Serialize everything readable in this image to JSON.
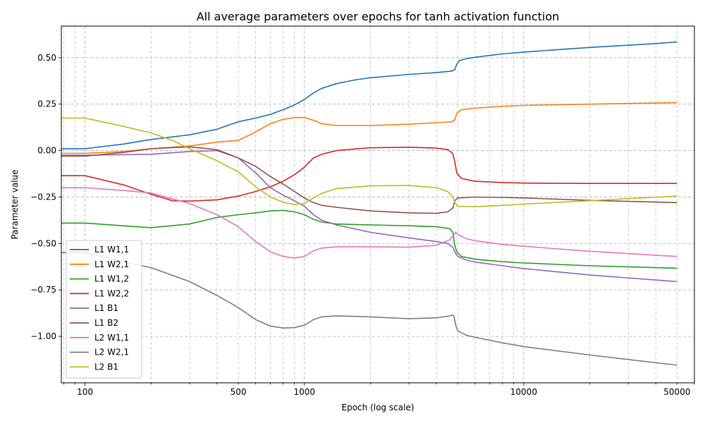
{
  "chart_data": {
    "type": "line",
    "title": "All average parameters over epochs for tanh activation function",
    "xlabel": "Epoch (log scale)",
    "ylabel": "Parameter value",
    "x_scale": "log",
    "xlim": [
      78,
      60000
    ],
    "ylim": [
      -1.25,
      0.67
    ],
    "x_ticks": [
      {
        "value": 100,
        "label": "100"
      },
      {
        "value": 500,
        "label": "500"
      },
      {
        "value": 1000,
        "label": "1000"
      },
      {
        "value": 10000,
        "label": "10000"
      },
      {
        "value": 50000,
        "label": "50000"
      }
    ],
    "y_ticks": [
      {
        "value": 0.5,
        "label": "0.50"
      },
      {
        "value": 0.25,
        "label": "0.25"
      },
      {
        "value": 0.0,
        "label": "0.00"
      },
      {
        "value": -0.25,
        "label": "−0.25"
      },
      {
        "value": -0.5,
        "label": "−0.50"
      },
      {
        "value": -0.75,
        "label": "−0.75"
      },
      {
        "value": -1.0,
        "label": "−1.00"
      }
    ],
    "grid": true,
    "legend_position": "lower-left",
    "series": [
      {
        "name": "L1 W1,1",
        "color": "#1f77b4",
        "points": [
          [
            70,
            0.01
          ],
          [
            100,
            0.01
          ],
          [
            150,
            0.035
          ],
          [
            200,
            0.06
          ],
          [
            300,
            0.085
          ],
          [
            400,
            0.115
          ],
          [
            500,
            0.155
          ],
          [
            600,
            0.175
          ],
          [
            700,
            0.195
          ],
          [
            800,
            0.22
          ],
          [
            900,
            0.245
          ],
          [
            1000,
            0.275
          ],
          [
            1100,
            0.31
          ],
          [
            1200,
            0.335
          ],
          [
            1400,
            0.36
          ],
          [
            1700,
            0.38
          ],
          [
            2000,
            0.392
          ],
          [
            3000,
            0.41
          ],
          [
            4000,
            0.42
          ],
          [
            4700,
            0.428
          ],
          [
            4850,
            0.435
          ],
          [
            4950,
            0.465
          ],
          [
            5100,
            0.485
          ],
          [
            5500,
            0.495
          ],
          [
            6000,
            0.502
          ],
          [
            7000,
            0.512
          ],
          [
            8000,
            0.52
          ],
          [
            10000,
            0.53
          ],
          [
            15000,
            0.545
          ],
          [
            20000,
            0.555
          ],
          [
            30000,
            0.567
          ],
          [
            40000,
            0.576
          ],
          [
            50000,
            0.585
          ]
        ]
      },
      {
        "name": "L1 W2,1",
        "color": "#ff7f0e",
        "points": [
          [
            70,
            -0.015
          ],
          [
            100,
            -0.015
          ],
          [
            150,
            -0.005
          ],
          [
            200,
            0.01
          ],
          [
            300,
            0.025
          ],
          [
            400,
            0.045
          ],
          [
            500,
            0.055
          ],
          [
            600,
            0.1
          ],
          [
            700,
            0.145
          ],
          [
            800,
            0.168
          ],
          [
            900,
            0.178
          ],
          [
            1000,
            0.178
          ],
          [
            1100,
            0.163
          ],
          [
            1200,
            0.145
          ],
          [
            1400,
            0.135
          ],
          [
            2000,
            0.135
          ],
          [
            3000,
            0.142
          ],
          [
            4000,
            0.15
          ],
          [
            4700,
            0.155
          ],
          [
            4850,
            0.165
          ],
          [
            4950,
            0.2
          ],
          [
            5200,
            0.22
          ],
          [
            6000,
            0.228
          ],
          [
            8000,
            0.238
          ],
          [
            10000,
            0.243
          ],
          [
            20000,
            0.25
          ],
          [
            50000,
            0.258
          ]
        ]
      },
      {
        "name": "L1 W1,2",
        "color": "#2ca02c",
        "points": [
          [
            70,
            -0.39
          ],
          [
            100,
            -0.39
          ],
          [
            150,
            -0.405
          ],
          [
            200,
            -0.415
          ],
          [
            300,
            -0.395
          ],
          [
            400,
            -0.36
          ],
          [
            500,
            -0.345
          ],
          [
            600,
            -0.335
          ],
          [
            700,
            -0.325
          ],
          [
            800,
            -0.322
          ],
          [
            900,
            -0.33
          ],
          [
            1000,
            -0.345
          ],
          [
            1100,
            -0.37
          ],
          [
            1200,
            -0.385
          ],
          [
            1400,
            -0.395
          ],
          [
            2000,
            -0.4
          ],
          [
            3000,
            -0.405
          ],
          [
            4000,
            -0.41
          ],
          [
            4600,
            -0.42
          ],
          [
            4750,
            -0.44
          ],
          [
            4850,
            -0.51
          ],
          [
            4950,
            -0.545
          ],
          [
            5200,
            -0.57
          ],
          [
            6000,
            -0.585
          ],
          [
            8000,
            -0.598
          ],
          [
            10000,
            -0.605
          ],
          [
            20000,
            -0.62
          ],
          [
            50000,
            -0.633
          ]
        ]
      },
      {
        "name": "L1 W2,2",
        "color": "#d62728",
        "points": [
          [
            70,
            -0.135
          ],
          [
            100,
            -0.135
          ],
          [
            150,
            -0.185
          ],
          [
            200,
            -0.235
          ],
          [
            250,
            -0.27
          ],
          [
            300,
            -0.272
          ],
          [
            400,
            -0.265
          ],
          [
            500,
            -0.245
          ],
          [
            600,
            -0.22
          ],
          [
            700,
            -0.195
          ],
          [
            800,
            -0.165
          ],
          [
            900,
            -0.13
          ],
          [
            1000,
            -0.09
          ],
          [
            1100,
            -0.04
          ],
          [
            1200,
            -0.02
          ],
          [
            1400,
            0.0
          ],
          [
            2000,
            0.015
          ],
          [
            3000,
            0.018
          ],
          [
            4000,
            0.013
          ],
          [
            4500,
            0.005
          ],
          [
            4750,
            -0.015
          ],
          [
            4850,
            -0.06
          ],
          [
            4950,
            -0.12
          ],
          [
            5200,
            -0.15
          ],
          [
            6000,
            -0.165
          ],
          [
            8000,
            -0.172
          ],
          [
            10000,
            -0.175
          ],
          [
            20000,
            -0.177
          ],
          [
            50000,
            -0.177
          ]
        ]
      },
      {
        "name": "L1 B1",
        "color": "#9467bd",
        "points": [
          [
            70,
            -0.025
          ],
          [
            100,
            -0.025
          ],
          [
            200,
            -0.02
          ],
          [
            300,
            -0.005
          ],
          [
            400,
            0.0
          ],
          [
            500,
            -0.04
          ],
          [
            600,
            -0.12
          ],
          [
            700,
            -0.2
          ],
          [
            800,
            -0.24
          ],
          [
            900,
            -0.27
          ],
          [
            1000,
            -0.3
          ],
          [
            1100,
            -0.345
          ],
          [
            1200,
            -0.375
          ],
          [
            1400,
            -0.4
          ],
          [
            2000,
            -0.44
          ],
          [
            3000,
            -0.47
          ],
          [
            4000,
            -0.49
          ],
          [
            4500,
            -0.5
          ],
          [
            4750,
            -0.52
          ],
          [
            4850,
            -0.545
          ],
          [
            5000,
            -0.57
          ],
          [
            5500,
            -0.59
          ],
          [
            6000,
            -0.6
          ],
          [
            8000,
            -0.62
          ],
          [
            10000,
            -0.635
          ],
          [
            20000,
            -0.67
          ],
          [
            50000,
            -0.705
          ]
        ]
      },
      {
        "name": "L1 B2",
        "color": "#8c564b",
        "points": [
          [
            70,
            -0.03
          ],
          [
            100,
            -0.03
          ],
          [
            150,
            -0.01
          ],
          [
            200,
            0.01
          ],
          [
            300,
            0.02
          ],
          [
            400,
            0.005
          ],
          [
            500,
            -0.04
          ],
          [
            600,
            -0.085
          ],
          [
            700,
            -0.14
          ],
          [
            800,
            -0.18
          ],
          [
            900,
            -0.22
          ],
          [
            1000,
            -0.255
          ],
          [
            1100,
            -0.28
          ],
          [
            1200,
            -0.295
          ],
          [
            1400,
            -0.305
          ],
          [
            2000,
            -0.325
          ],
          [
            3000,
            -0.335
          ],
          [
            4000,
            -0.338
          ],
          [
            4500,
            -0.33
          ],
          [
            4750,
            -0.31
          ],
          [
            4850,
            -0.27
          ],
          [
            5000,
            -0.255
          ],
          [
            6000,
            -0.25
          ],
          [
            8000,
            -0.252
          ],
          [
            10000,
            -0.255
          ],
          [
            20000,
            -0.268
          ],
          [
            50000,
            -0.28
          ]
        ]
      },
      {
        "name": "L2 W1,1",
        "color": "#e377c2",
        "points": [
          [
            70,
            -0.2
          ],
          [
            100,
            -0.2
          ],
          [
            150,
            -0.215
          ],
          [
            200,
            -0.228
          ],
          [
            300,
            -0.285
          ],
          [
            400,
            -0.345
          ],
          [
            500,
            -0.41
          ],
          [
            600,
            -0.49
          ],
          [
            700,
            -0.545
          ],
          [
            800,
            -0.57
          ],
          [
            900,
            -0.578
          ],
          [
            1000,
            -0.57
          ],
          [
            1100,
            -0.54
          ],
          [
            1200,
            -0.525
          ],
          [
            1400,
            -0.518
          ],
          [
            2000,
            -0.518
          ],
          [
            3000,
            -0.52
          ],
          [
            4000,
            -0.51
          ],
          [
            4600,
            -0.48
          ],
          [
            4750,
            -0.46
          ],
          [
            4900,
            -0.44
          ],
          [
            5050,
            -0.455
          ],
          [
            5500,
            -0.475
          ],
          [
            6000,
            -0.485
          ],
          [
            8000,
            -0.505
          ],
          [
            10000,
            -0.515
          ],
          [
            20000,
            -0.542
          ],
          [
            50000,
            -0.57
          ]
        ]
      },
      {
        "name": "L2 W2,1",
        "color": "#7f7f7f",
        "points": [
          [
            70,
            -0.548
          ],
          [
            100,
            -0.55
          ],
          [
            150,
            -0.6
          ],
          [
            200,
            -0.63
          ],
          [
            300,
            -0.705
          ],
          [
            400,
            -0.78
          ],
          [
            500,
            -0.845
          ],
          [
            600,
            -0.91
          ],
          [
            700,
            -0.945
          ],
          [
            800,
            -0.955
          ],
          [
            900,
            -0.953
          ],
          [
            1000,
            -0.94
          ],
          [
            1100,
            -0.91
          ],
          [
            1200,
            -0.895
          ],
          [
            1400,
            -0.89
          ],
          [
            2000,
            -0.895
          ],
          [
            3000,
            -0.905
          ],
          [
            4000,
            -0.9
          ],
          [
            4600,
            -0.89
          ],
          [
            4700,
            -0.885
          ],
          [
            4800,
            -0.89
          ],
          [
            4900,
            -0.94
          ],
          [
            5000,
            -0.97
          ],
          [
            5500,
            -0.995
          ],
          [
            6000,
            -1.005
          ],
          [
            8000,
            -1.035
          ],
          [
            10000,
            -1.055
          ],
          [
            20000,
            -1.1
          ],
          [
            50000,
            -1.155
          ]
        ]
      },
      {
        "name": "L2 B1",
        "color": "#bcbd22",
        "points": [
          [
            70,
            0.175
          ],
          [
            100,
            0.175
          ],
          [
            150,
            0.13
          ],
          [
            200,
            0.095
          ],
          [
            250,
            0.055
          ],
          [
            300,
            0.01
          ],
          [
            400,
            -0.055
          ],
          [
            500,
            -0.115
          ],
          [
            600,
            -0.195
          ],
          [
            700,
            -0.25
          ],
          [
            800,
            -0.278
          ],
          [
            900,
            -0.29
          ],
          [
            1000,
            -0.285
          ],
          [
            1100,
            -0.255
          ],
          [
            1200,
            -0.23
          ],
          [
            1400,
            -0.205
          ],
          [
            2000,
            -0.19
          ],
          [
            3000,
            -0.188
          ],
          [
            4000,
            -0.2
          ],
          [
            4500,
            -0.22
          ],
          [
            4750,
            -0.25
          ],
          [
            4850,
            -0.28
          ],
          [
            5000,
            -0.3
          ],
          [
            6000,
            -0.302
          ],
          [
            8000,
            -0.295
          ],
          [
            10000,
            -0.288
          ],
          [
            20000,
            -0.27
          ],
          [
            50000,
            -0.245
          ]
        ]
      }
    ]
  }
}
